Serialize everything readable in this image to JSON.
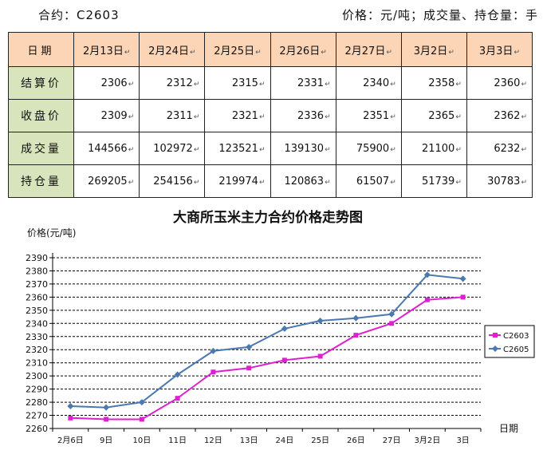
{
  "header": {
    "contract": "合约：C2603",
    "units": "价格：元/吨；成交量、持仓量：手"
  },
  "table": {
    "corner": "日期",
    "columns": [
      "2月13日",
      "2月24日",
      "2月25日",
      "2月26日",
      "2月27日",
      "3月2日",
      "3月3日"
    ],
    "rows": [
      {
        "label": "结算价",
        "values": [
          "2306",
          "2312",
          "2315",
          "2331",
          "2340",
          "2358",
          "2360"
        ]
      },
      {
        "label": "收盘价",
        "values": [
          "2309",
          "2311",
          "2321",
          "2336",
          "2351",
          "2365",
          "2362"
        ]
      },
      {
        "label": "成交量",
        "values": [
          "144566",
          "102972",
          "123521",
          "139130",
          "75900",
          "21100",
          "6232"
        ]
      },
      {
        "label": "持仓量",
        "values": [
          "269205",
          "254156",
          "219974",
          "120863",
          "61507",
          "51739",
          "30783"
        ]
      }
    ]
  },
  "chart_data": {
    "type": "line",
    "title": "大商所玉米主力合约价格走势图",
    "ylabel": "价格(元/吨)",
    "xlabel": "日期",
    "categories": [
      "2月6日",
      "9日",
      "10日",
      "11日",
      "12日",
      "13日",
      "24日",
      "25日",
      "26日",
      "27日",
      "3月2日",
      "3日"
    ],
    "ylim": [
      2260,
      2390
    ],
    "yticks": [
      2260,
      2270,
      2280,
      2290,
      2300,
      2310,
      2320,
      2330,
      2340,
      2350,
      2360,
      2370,
      2380,
      2390
    ],
    "grid": true,
    "legend": "right",
    "series": [
      {
        "name": "C2603",
        "color": "#e020d0",
        "marker": "square",
        "values": [
          2268,
          2267,
          2267,
          2283,
          2303,
          2306,
          2312,
          2315,
          2331,
          2340,
          2358,
          2360
        ]
      },
      {
        "name": "C2605",
        "color": "#4a78b0",
        "marker": "diamond",
        "values": [
          2277,
          2276,
          2280,
          2301,
          2319,
          2322,
          2336,
          2342,
          2344,
          2347,
          2377,
          2374
        ]
      }
    ]
  },
  "paragraph_mark": "↵"
}
